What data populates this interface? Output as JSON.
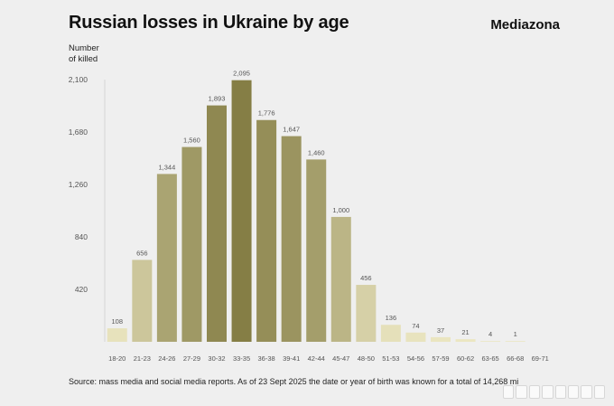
{
  "header": {
    "title": "Russian losses in Ukraine by age",
    "brand": "Mediazona",
    "y_axis_label": "Number\nof killed"
  },
  "footer": {
    "source": "Source: mass media and social media reports. As of 23 Sept 2025 the date or year of birth was known for a total of 14,268 mi"
  },
  "chart_data": {
    "type": "bar",
    "title": "Russian losses in Ukraine by age",
    "ylabel": "Number of killed",
    "xlabel": "",
    "categories": [
      "18-20",
      "21-23",
      "24-26",
      "27-29",
      "30-32",
      "33-35",
      "36-38",
      "39-41",
      "42-44",
      "45-47",
      "48-50",
      "51-53",
      "54-56",
      "57-59",
      "60-62",
      "63-65",
      "66-68",
      "69-71"
    ],
    "values": [
      108,
      656,
      1344,
      1560,
      1893,
      2095,
      1776,
      1647,
      1460,
      1000,
      456,
      136,
      74,
      37,
      21,
      4,
      1,
      0
    ],
    "value_labels": [
      "108",
      "656",
      "1,344",
      "1,560",
      "1,893",
      "2,095",
      "1,776",
      "1,647",
      "1,460",
      "1,000",
      "456",
      "136",
      "74",
      "37",
      "21",
      "4",
      "1",
      ""
    ],
    "yticks": [
      420,
      840,
      1260,
      1680,
      2100
    ],
    "ytick_labels": [
      "420",
      "840",
      "1,260",
      "1,680",
      "2,100"
    ],
    "ylim": [
      0,
      2100
    ],
    "grid": false,
    "colors": {
      "darkest": "#857e45",
      "lightest": "#ece7c2",
      "axis": "#d5d5d5",
      "label": "#555555"
    }
  }
}
